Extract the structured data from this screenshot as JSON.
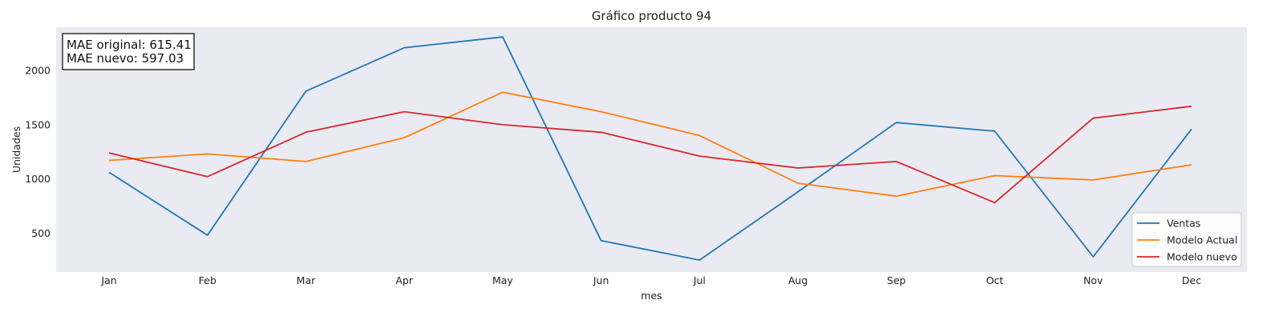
{
  "chart_data": {
    "type": "line",
    "title": "Gráfico producto 94",
    "xlabel": "mes",
    "ylabel": "Unidades",
    "categories": [
      "Jan",
      "Feb",
      "Mar",
      "Apr",
      "May",
      "Jun",
      "Jul",
      "Aug",
      "Sep",
      "Oct",
      "Nov",
      "Dec"
    ],
    "yticks": [
      500,
      1000,
      1500,
      2000
    ],
    "ylim": [
      140,
      2400
    ],
    "grid": false,
    "legend_position": "bottom-right",
    "series": [
      {
        "name": "Ventas",
        "color": "#1f77b4",
        "values": [
          1060,
          480,
          1810,
          2210,
          2310,
          430,
          250,
          880,
          1520,
          1440,
          280,
          1460
        ]
      },
      {
        "name": "Modelo Actual",
        "color": "#ff7f0e",
        "values": [
          1170,
          1230,
          1160,
          1380,
          1800,
          1620,
          1400,
          960,
          840,
          1030,
          990,
          1130
        ]
      },
      {
        "name": "Modelo nuevo",
        "color": "#d62728",
        "values": [
          1240,
          1020,
          1430,
          1620,
          1500,
          1430,
          1210,
          1100,
          1160,
          780,
          1560,
          1670
        ]
      }
    ],
    "annotations": [
      "MAE original: 615.41",
      "MAE nuevo: 597.03"
    ]
  }
}
